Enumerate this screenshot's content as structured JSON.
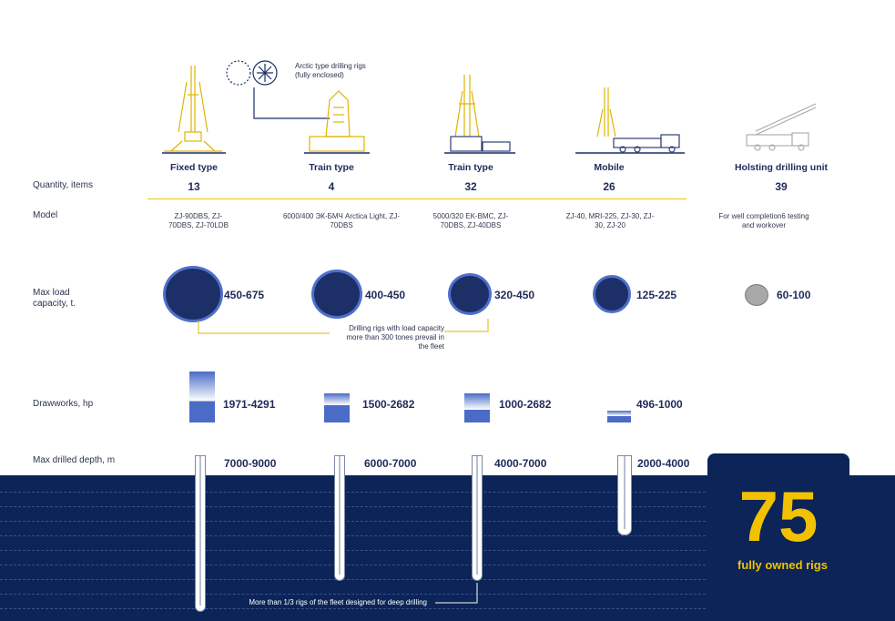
{
  "legend_note": "Arctic type drilling rigs (fully enclosed)",
  "row_labels": {
    "quantity": "Quantity, items",
    "model": "Model",
    "load": "Max load capacity, t.",
    "drawworks": "Drawworks, hp",
    "depth": "Max drilled depth, m"
  },
  "columns": [
    {
      "type": "Fixed type",
      "quantity": "13",
      "model": "ZJ-90DBS, ZJ-70DBS, ZJ-70LDB",
      "load": "450-675",
      "drawworks": "1971-4291",
      "depth": "7000-9000"
    },
    {
      "type": "Train type",
      "quantity": "4",
      "model": "6000/400 ЭК-БМЧ Arctica Light, ZJ-70DBS",
      "load": "400-450",
      "drawworks": "1500-2682",
      "depth": "6000-7000"
    },
    {
      "type": "Train type",
      "quantity": "32",
      "model": "5000/320 EK-BMC, ZJ-70DBS, ZJ-40DBS",
      "load": "320-450",
      "drawworks": "1000-2682",
      "depth": "4000-7000"
    },
    {
      "type": "Mobile",
      "quantity": "26",
      "model": "ZJ-40, MRI-225, ZJ-30, ZJ-30, ZJ-20",
      "load": "125-225",
      "drawworks": "496-1000",
      "depth": "2000-4000"
    },
    {
      "type": "Holsting drilling unit",
      "quantity": "39",
      "model": "For well completion6 testing and workover",
      "load": "60-100"
    }
  ],
  "load_note": "Drilling rigs with load capacity more than 300 tones prevail in the fleet",
  "depth_note": "More than 1/3 rigs of the fleet designed for deep drilling",
  "total": {
    "number": "75",
    "label": "fully owned rigs"
  },
  "colors": {
    "navy": "#0c2457",
    "yellow": "#f2c200",
    "circle": "#1c2f66",
    "accent_blue": "#4a6cc7"
  }
}
